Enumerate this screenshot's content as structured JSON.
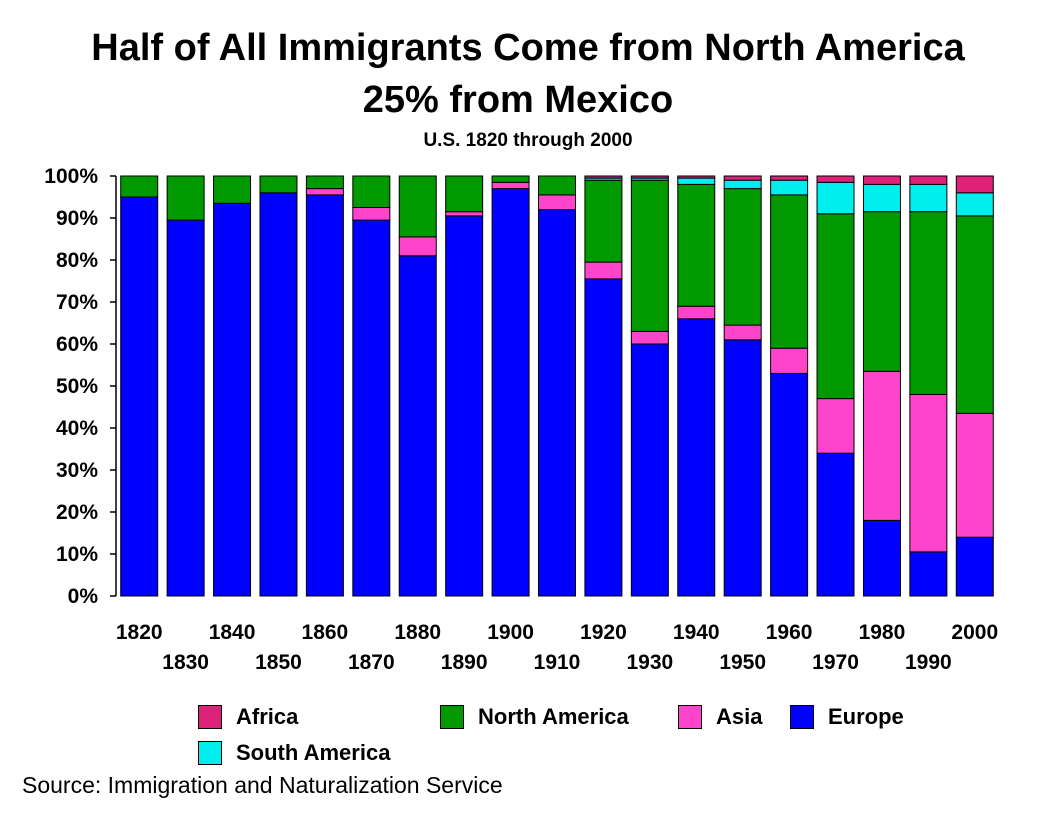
{
  "chart_data": {
    "type": "bar",
    "stacked": true,
    "title": "Half of All Immigrants Come from North America",
    "title_line2": "25% from Mexico",
    "subtitle": "U.S. 1820 through 2000",
    "source": "Source: Immigration and Naturalization Service",
    "categories": [
      "1820",
      "1830",
      "1840",
      "1850",
      "1860",
      "1870",
      "1880",
      "1890",
      "1900",
      "1910",
      "1920",
      "1930",
      "1940",
      "1950",
      "1960",
      "1970",
      "1980",
      "1990",
      "2000"
    ],
    "y_ticks": [
      "0%",
      "10%",
      "20%",
      "30%",
      "40%",
      "50%",
      "60%",
      "70%",
      "80%",
      "90%",
      "100%"
    ],
    "ylim": [
      0,
      100
    ],
    "series": [
      {
        "name": "Europe",
        "color": "#0000ff",
        "values": [
          95,
          89.5,
          93.5,
          96,
          95.5,
          89.5,
          81,
          90.5,
          97,
          92,
          75.5,
          60,
          66,
          61,
          53,
          34,
          18,
          10.5,
          14
        ]
      },
      {
        "name": "Asia",
        "color": "#ff44cc",
        "values": [
          0,
          0,
          0,
          0,
          1.5,
          3,
          4.5,
          1,
          1.5,
          3.5,
          4,
          3,
          3,
          3.5,
          6,
          13,
          35.5,
          37.5,
          29.5
        ]
      },
      {
        "name": "North America",
        "color": "#009900",
        "values": [
          5,
          10.5,
          6.5,
          4,
          3,
          7.5,
          14.5,
          8.5,
          1.5,
          4.5,
          19.5,
          36,
          29,
          32.5,
          36.5,
          44,
          38,
          43.5,
          47
        ]
      },
      {
        "name": "South America",
        "color": "#00eeee",
        "values": [
          0,
          0,
          0,
          0,
          0,
          0,
          0,
          0,
          0,
          0,
          0.5,
          0.5,
          1.5,
          2,
          3.5,
          7.5,
          6.5,
          6.5,
          5.5
        ]
      },
      {
        "name": "Africa",
        "color": "#dd2277",
        "values": [
          0,
          0,
          0,
          0,
          0,
          0,
          0,
          0,
          0,
          0,
          0.5,
          0.5,
          0.5,
          1,
          1,
          1.5,
          2,
          2,
          4
        ]
      }
    ],
    "legend": [
      {
        "name": "Africa",
        "color": "#dd2277"
      },
      {
        "name": "North America",
        "color": "#009900"
      },
      {
        "name": "Asia",
        "color": "#ff44cc"
      },
      {
        "name": "Europe",
        "color": "#0000ff"
      },
      {
        "name": "South America",
        "color": "#00eeee"
      }
    ],
    "legend_position": "bottom",
    "grid": false
  }
}
